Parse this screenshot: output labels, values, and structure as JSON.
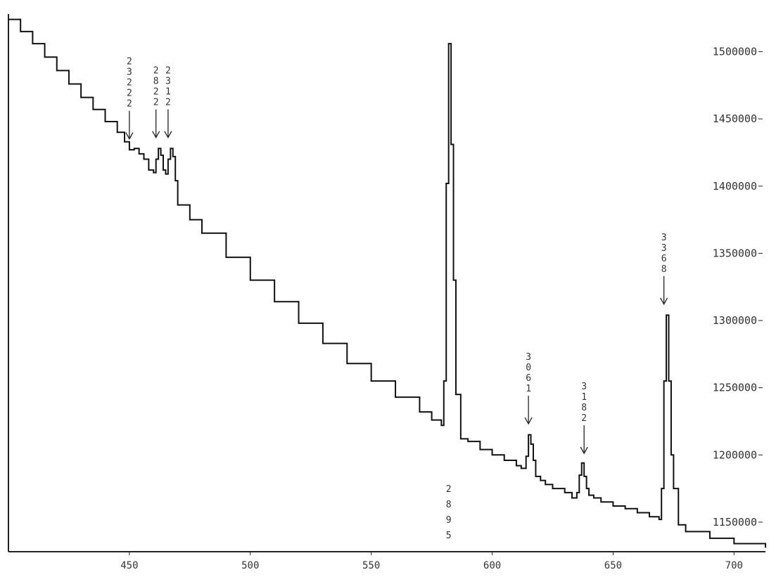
{
  "chart_data": {
    "type": "line",
    "title": "",
    "xlabel": "",
    "ylabel": "",
    "xlim": [
      400,
      713
    ],
    "ylim": [
      1128000,
      1528000
    ],
    "grid": false,
    "legend": "none",
    "x_ticks": [
      "450",
      "500",
      "550",
      "600",
      "650",
      "700"
    ],
    "y_ticks": [
      "1500000",
      "1450000",
      "1400000",
      "1350000",
      "1300000",
      "1250000",
      "1200000",
      "1150000"
    ],
    "series": [
      {
        "color": "#111111",
        "x": [
          400,
          405,
          410,
          415,
          420,
          425,
          430,
          435,
          440,
          445,
          448,
          450,
          452,
          454,
          456,
          458,
          460,
          461,
          462,
          463,
          464,
          465,
          466,
          467,
          468,
          469,
          470,
          475,
          480,
          490,
          500,
          510,
          520,
          530,
          540,
          550,
          560,
          570,
          575,
          579,
          580,
          581,
          582,
          583,
          584,
          585,
          587,
          590,
          595,
          600,
          605,
          610,
          612,
          614,
          615,
          616,
          617,
          618,
          620,
          622,
          625,
          630,
          633,
          635,
          636,
          637,
          638,
          639,
          640,
          642,
          645,
          650,
          655,
          660,
          665,
          669,
          670,
          671,
          672,
          673,
          674,
          675,
          677,
          680,
          690,
          700,
          713
        ],
        "y": [
          1524000,
          1515000,
          1506000,
          1496000,
          1486000,
          1476000,
          1466000,
          1457000,
          1448000,
          1440000,
          1433000,
          1427000,
          1428000,
          1424000,
          1420000,
          1412000,
          1410000,
          1420000,
          1428000,
          1423000,
          1412000,
          1409000,
          1420000,
          1428000,
          1422000,
          1404000,
          1386000,
          1375000,
          1365000,
          1347000,
          1330000,
          1314000,
          1298000,
          1283000,
          1268000,
          1255000,
          1243000,
          1232000,
          1226000,
          1222000,
          1255000,
          1402000,
          1506000,
          1431000,
          1330000,
          1245000,
          1212000,
          1210000,
          1204000,
          1200000,
          1196000,
          1192000,
          1190000,
          1199000,
          1215000,
          1208000,
          1196000,
          1184000,
          1181000,
          1178000,
          1175000,
          1172000,
          1168000,
          1172000,
          1185000,
          1194000,
          1184000,
          1175000,
          1170000,
          1168000,
          1165000,
          1162000,
          1160000,
          1157000,
          1154000,
          1152000,
          1175000,
          1255000,
          1304000,
          1255000,
          1200000,
          1175000,
          1148000,
          1143000,
          1138000,
          1134000,
          1131000
        ]
      }
    ],
    "annotations": [
      {
        "x": 450,
        "y": 1432000,
        "text": [
          "2",
          "3",
          "2",
          "2",
          "2"
        ]
      },
      {
        "x": 461,
        "y": 1433000,
        "text": [
          "2",
          "8",
          "2",
          "2"
        ]
      },
      {
        "x": 466,
        "y": 1433000,
        "text": [
          "2",
          "3",
          "1",
          "2"
        ]
      },
      {
        "x": 615,
        "y": 1220000,
        "text": [
          "3",
          "0",
          "6",
          "1"
        ]
      },
      {
        "x": 638,
        "y": 1198000,
        "text": [
          "3",
          "1",
          "8",
          "2"
        ]
      },
      {
        "x": 671,
        "y": 1309000,
        "text": [
          "3",
          "3",
          "6",
          "8"
        ]
      }
    ],
    "bottom_label": {
      "x": 582,
      "text": [
        "2",
        "8",
        "9",
        "5"
      ]
    }
  }
}
